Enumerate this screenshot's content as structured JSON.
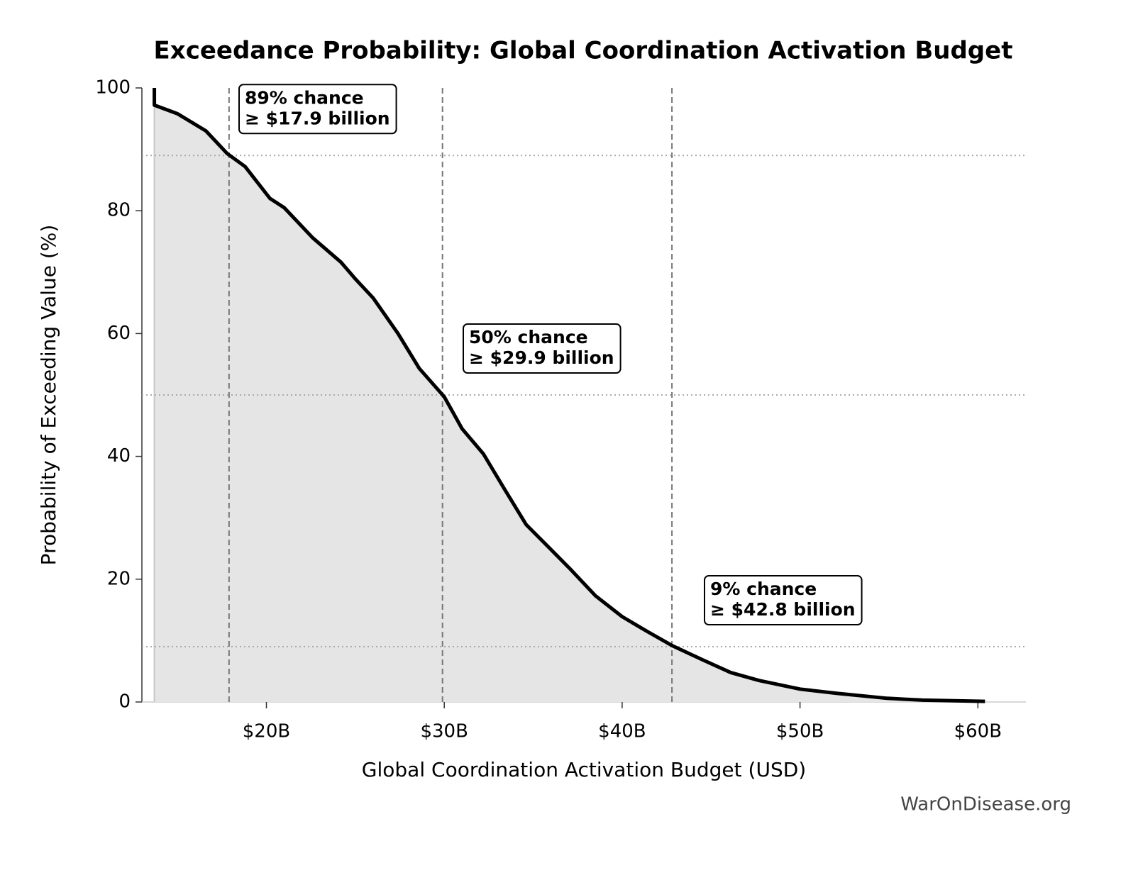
{
  "chart_data": {
    "type": "line",
    "title": "Exceedance Probability: Global Coordination Activation Budget",
    "x_label": "Global Coordination Activation Budget (USD)",
    "y_label": "Probability of Exceeding Value (%)",
    "watermark": "WarOnDisease.org",
    "x": [
      13.7,
      13.7,
      15.0,
      16.6,
      17.8,
      18.8,
      20.2,
      21.0,
      22.6,
      24.2,
      25.0,
      26.0,
      27.4,
      28.6,
      30.0,
      31.0,
      32.2,
      33.4,
      34.6,
      35.8,
      37.0,
      38.5,
      40.0,
      41.4,
      42.8,
      44.5,
      46.1,
      47.7,
      50.0,
      52.1,
      54.9,
      56.9,
      60.4
    ],
    "series": [
      {
        "color": "#000000",
        "fill": "#e5e5e5",
        "values": [
          100,
          97.2,
          95.8,
          93.0,
          89.3,
          87.2,
          82.0,
          80.5,
          75.6,
          71.6,
          68.9,
          65.8,
          60.0,
          54.3,
          49.7,
          44.5,
          40.4,
          34.6,
          28.9,
          25.4,
          21.9,
          17.3,
          13.9,
          11.5,
          9.2,
          6.9,
          4.8,
          3.5,
          2.1,
          1.4,
          0.6,
          0.3,
          0.1
        ]
      }
    ],
    "annotations": [
      {
        "x": 17.9,
        "y": 89,
        "lines": [
          "89% chance",
          "≥ $17.9 billion"
        ]
      },
      {
        "x": 29.9,
        "y": 50,
        "lines": [
          "50% chance",
          "≥ $29.9 billion"
        ]
      },
      {
        "x": 42.8,
        "y": 9,
        "lines": [
          "9% chance",
          "≥ $42.8 billion"
        ]
      }
    ],
    "xlim": [
      13.0,
      62.7
    ],
    "ylim": [
      0,
      100
    ],
    "xticks": [
      {
        "value": 20,
        "label": "$20B"
      },
      {
        "value": 30,
        "label": "$30B"
      },
      {
        "value": 40,
        "label": "$40B"
      },
      {
        "value": 50,
        "label": "$50B"
      },
      {
        "value": 60,
        "label": "$60B"
      }
    ],
    "yticks": [
      0,
      20,
      40,
      60,
      80,
      100
    ]
  }
}
